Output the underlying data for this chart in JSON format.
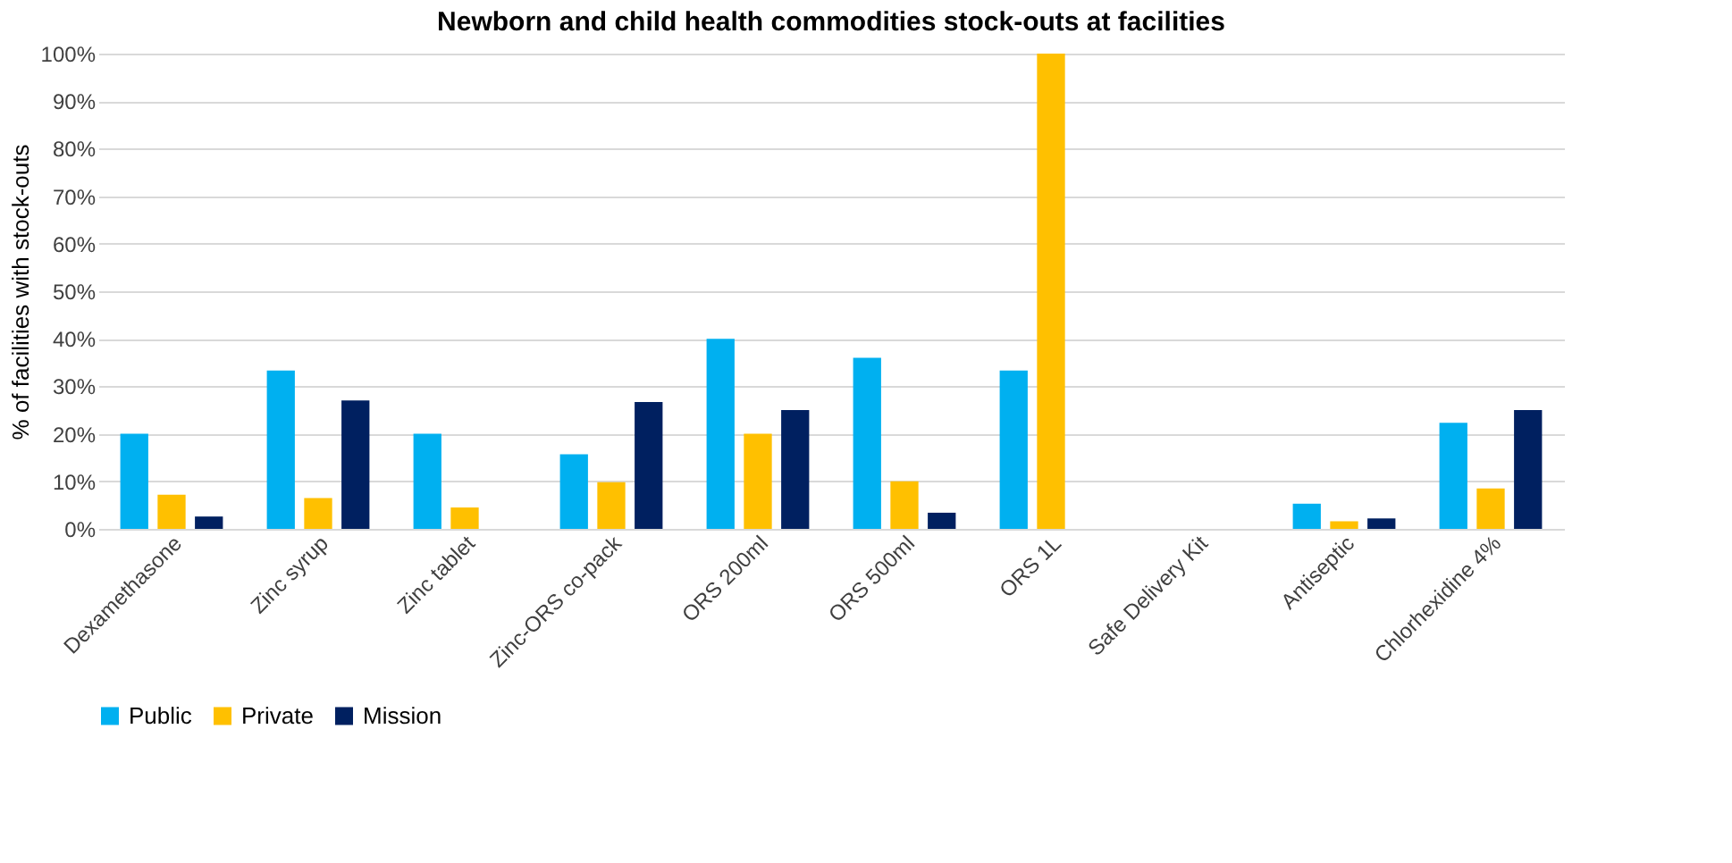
{
  "chart_data": {
    "type": "bar",
    "title": "Newborn and child health commodities stock-outs at facilities",
    "ylabel": "% of facilities with stock-outs",
    "categories": [
      "Dexamethasone",
      "Zinc syrup",
      "Zinc tablet",
      "Zinc-ORS co-pack",
      "ORS 200ml",
      "ORS 500ml",
      "ORS 1L",
      "Safe Delivery Kit",
      "Antiseptic",
      "Chlorhexidine 4%"
    ],
    "series": [
      {
        "name": "Public",
        "color": "#00b0f0",
        "values": [
          20,
          33.3,
          20,
          15.7,
          40,
          36,
          33.3,
          0,
          5.3,
          22.3
        ]
      },
      {
        "name": "Private",
        "color": "#ffc000",
        "values": [
          7.2,
          6.5,
          4.5,
          9.8,
          20,
          10,
          100,
          0,
          1.6,
          8.5
        ]
      },
      {
        "name": "Mission",
        "color": "#002060",
        "values": [
          2.6,
          27,
          0,
          26.7,
          25,
          3.4,
          0,
          0,
          2.2,
          25
        ]
      }
    ],
    "ylim": [
      0,
      100
    ],
    "yticks": [
      {
        "value": 0,
        "label": "0%"
      },
      {
        "value": 10,
        "label": "10%"
      },
      {
        "value": 20,
        "label": "20%"
      },
      {
        "value": 30,
        "label": "30%"
      },
      {
        "value": 40,
        "label": "40%"
      },
      {
        "value": 50,
        "label": "50%"
      },
      {
        "value": 60,
        "label": "60%"
      },
      {
        "value": 70,
        "label": "70%"
      },
      {
        "value": 80,
        "label": "80%"
      },
      {
        "value": 90,
        "label": "90%"
      },
      {
        "value": 100,
        "label": "100%"
      }
    ],
    "grid": "y",
    "legend": "bottom"
  }
}
